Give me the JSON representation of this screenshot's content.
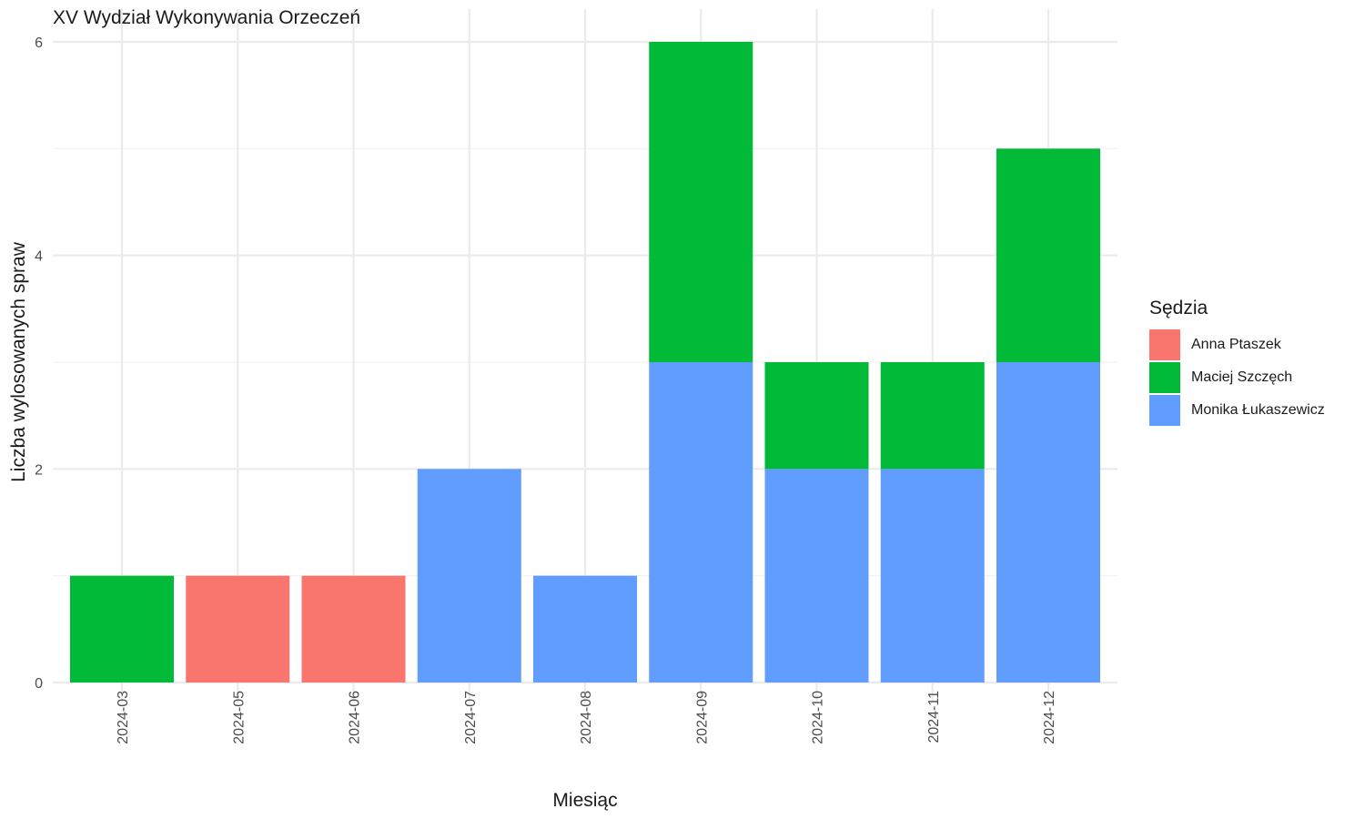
{
  "chart_data": {
    "type": "bar",
    "stacked": true,
    "title": "XV Wydział Wykonywania Orzeczeń",
    "xlabel": "Miesiąc",
    "ylabel": "Liczba wylosowanych spraw",
    "categories": [
      "2024-03",
      "2024-05",
      "2024-06",
      "2024-07",
      "2024-08",
      "2024-09",
      "2024-10",
      "2024-11",
      "2024-12"
    ],
    "series": [
      {
        "name": "Monika Łukaszewicz",
        "color": "#619CFF",
        "values": [
          0,
          0,
          0,
          2,
          1,
          3,
          2,
          2,
          3
        ]
      },
      {
        "name": "Anna Ptaszek",
        "color": "#F8766D",
        "values": [
          0,
          1,
          1,
          0,
          0,
          0,
          0,
          0,
          0
        ]
      },
      {
        "name": "Maciej Szczęch",
        "color": "#00BA38",
        "values": [
          1,
          0,
          0,
          0,
          0,
          3,
          1,
          1,
          2
        ]
      }
    ],
    "ylim": [
      0,
      6
    ],
    "yticks": [
      0,
      2,
      4,
      6
    ],
    "grid": true,
    "legend": {
      "title": "Sędzia",
      "position": "right",
      "entries": [
        "Anna Ptaszek",
        "Maciej Szczęch",
        "Monika Łukaszewicz"
      ]
    }
  }
}
